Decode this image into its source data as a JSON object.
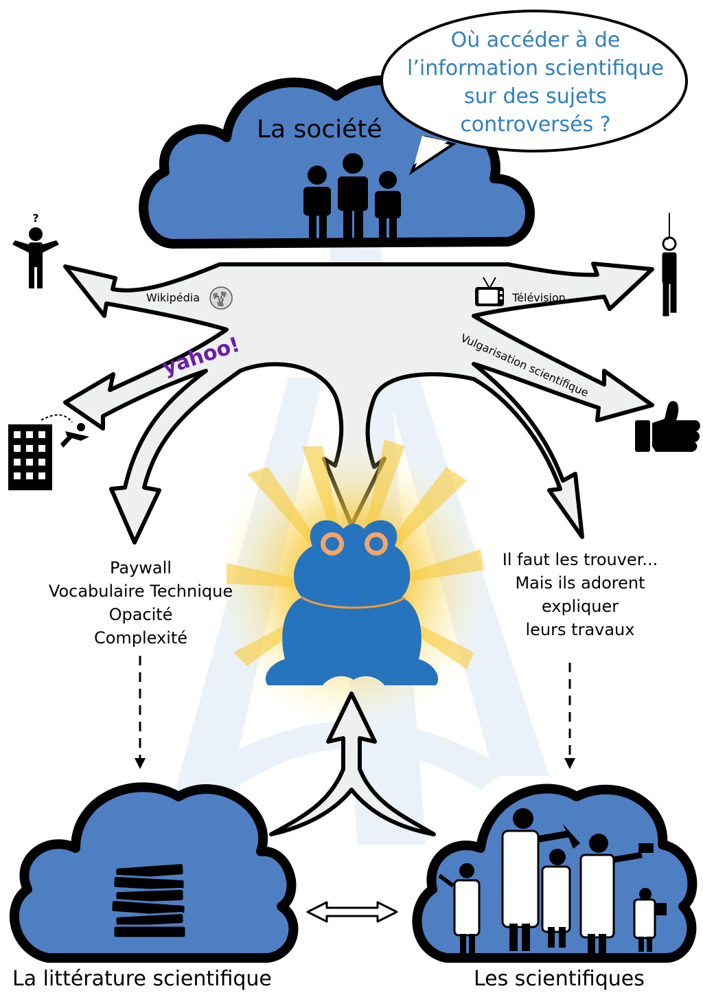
{
  "question": [
    "Où accéder à de",
    "l’information scientifique",
    "sur des sujets",
    "controversés ?"
  ],
  "society_label": "La société",
  "channels": {
    "wikipedia": "Wikipédia",
    "television": "Télévision",
    "yahoo": "yahoo!",
    "vulgarisation": "Vulgarisation scientifique"
  },
  "question_mark": "?",
  "obstacles": [
    "Paywall",
    "Vocabulaire Technique",
    "Opacité",
    "Complexité"
  ],
  "scientists_note": [
    "Il faut les trouver...",
    "Mais ils adorent",
    "expliquer",
    "leurs travaux"
  ],
  "literature_label": "La littérature scientifique",
  "scientists_label": "Les scientifiques",
  "colors": {
    "cloud": "#4f7fc3",
    "frog": "#2574bd",
    "frog_eyes": "#f4a46a",
    "question_text": "#2f7fc1",
    "arrow_fill": "#eef0f0",
    "yahoo": "#6b1fa8",
    "glow": "#f7c93a"
  },
  "icons": [
    "confused-person-icon",
    "hanged-person-icon",
    "falling-building-icon",
    "thumbs-up-icon",
    "wikipedia-globe-icon",
    "television-icon",
    "books-stack-icon",
    "scientists-group-icon",
    "frog-mascot-icon",
    "family-icon"
  ]
}
